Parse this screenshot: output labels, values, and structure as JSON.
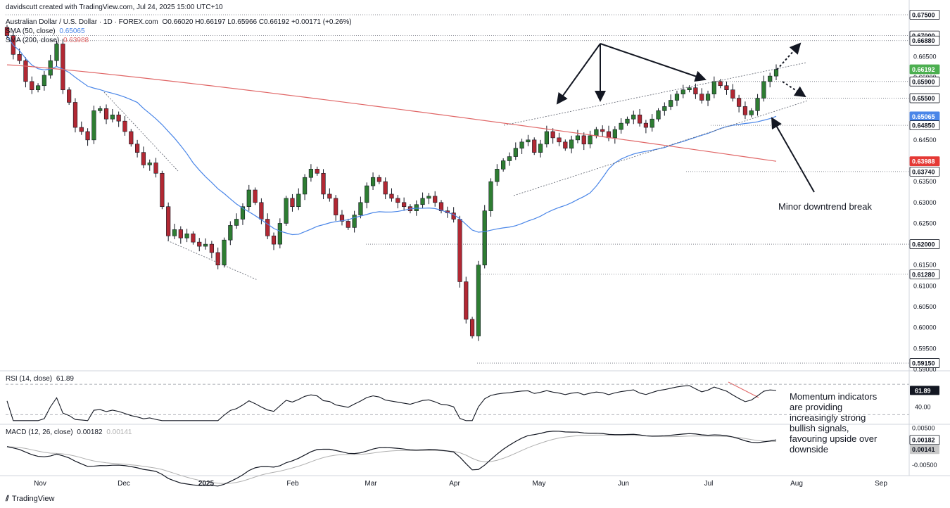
{
  "header": {
    "credit": "davidscutt created with TradingView.com, Jul 24, 2025 15:00 UTC+10",
    "symbol": "Australian Dollar / U.S. Dollar · 1D · FOREX.com",
    "ohlc": "O0.66020 H0.66197 L0.65966 C0.66192 +0.00171 (+0.26%)",
    "sma50_label": "SMA (50, close)",
    "sma50_value": "0.65065",
    "sma200_label": "SMA (200, close)",
    "sma200_value": "0.63988"
  },
  "colors": {
    "up": "#26a69a",
    "up_body": "#2e7d32",
    "down": "#b22833",
    "sma50": "#4a86e8",
    "sma200": "#e06666",
    "rsi": "#131722",
    "macd": "#131722",
    "signal": "#b0b0b0",
    "trend_red": "#e06666"
  },
  "chart_data": [
    {
      "type": "candlestick",
      "title": "Australian Dollar / U.S. Dollar · 1D · FOREX.com",
      "ylim": [
        0.5905,
        0.6755
      ],
      "y_ticks": [
        "0.66500",
        "0.66000",
        "0.65500",
        "0.64500",
        "0.63500",
        "0.63000",
        "0.62500",
        "0.61500",
        "0.61000",
        "0.60500",
        "0.60000",
        "0.59500",
        "0.59000"
      ],
      "x_ticks": [
        "Nov",
        "Dec",
        "2025",
        "Feb",
        "Mar",
        "Apr",
        "May",
        "Jun",
        "Jul",
        "Aug",
        "Sep"
      ],
      "closes_approx": [
        0.67,
        0.6655,
        0.664,
        0.659,
        0.657,
        0.658,
        0.6605,
        0.664,
        0.668,
        0.657,
        0.654,
        0.648,
        0.647,
        0.645,
        0.652,
        0.6525,
        0.65,
        0.651,
        0.6495,
        0.647,
        0.644,
        0.642,
        0.639,
        0.6395,
        0.637,
        0.629,
        0.622,
        0.6235,
        0.6215,
        0.6225,
        0.6205,
        0.6195,
        0.62,
        0.618,
        0.615,
        0.621,
        0.6245,
        0.626,
        0.629,
        0.633,
        0.63,
        0.626,
        0.622,
        0.62,
        0.625,
        0.631,
        0.629,
        0.632,
        0.636,
        0.638,
        0.637,
        0.632,
        0.631,
        0.627,
        0.6255,
        0.624,
        0.627,
        0.63,
        0.634,
        0.636,
        0.635,
        0.632,
        0.631,
        0.63,
        0.629,
        0.628,
        0.6295,
        0.631,
        0.6315,
        0.63,
        0.628,
        0.6275,
        0.626,
        0.611,
        0.602,
        0.598,
        0.615,
        0.628,
        0.635,
        0.638,
        0.64,
        0.641,
        0.643,
        0.6445,
        0.645,
        0.642,
        0.644,
        0.647,
        0.6455,
        0.6445,
        0.643,
        0.645,
        0.646,
        0.644,
        0.646,
        0.6475,
        0.647,
        0.6455,
        0.6475,
        0.649,
        0.65,
        0.651,
        0.649,
        0.648,
        0.65,
        0.652,
        0.653,
        0.6545,
        0.656,
        0.657,
        0.6575,
        0.656,
        0.6545,
        0.656,
        0.659,
        0.658,
        0.657,
        0.655,
        0.653,
        0.651,
        0.652,
        0.655,
        0.659,
        0.6603,
        0.6619
      ],
      "series": [
        {
          "name": "SMA (50, close)",
          "last": 0.65065
        },
        {
          "name": "SMA (200, close)",
          "last": 0.63988
        }
      ],
      "price_labels": [
        {
          "value": "0.67500",
          "kind": "level"
        },
        {
          "value": "0.67000",
          "kind": "level"
        },
        {
          "value": "0.66880",
          "kind": "level"
        },
        {
          "value": "0.66192",
          "kind": "last"
        },
        {
          "value": "0.65900",
          "kind": "level"
        },
        {
          "value": "0.65500",
          "kind": "level"
        },
        {
          "value": "0.65065",
          "kind": "sma50"
        },
        {
          "value": "0.64850",
          "kind": "level"
        },
        {
          "value": "0.63988",
          "kind": "sma200"
        },
        {
          "value": "0.63740",
          "kind": "level"
        },
        {
          "value": "0.62000",
          "kind": "level"
        },
        {
          "value": "0.61280",
          "kind": "level"
        },
        {
          "value": "0.59150",
          "kind": "level"
        }
      ],
      "annotations": [
        "Minor downtrend break"
      ]
    },
    {
      "type": "line",
      "title": "RSI (14, close)",
      "last": "61.89",
      "ylim": [
        20,
        85
      ],
      "y_ticks": [
        "40.00"
      ],
      "levels": [
        70,
        30
      ],
      "annotations": [
        "Momentum indicators are providing increasingly strong bullish signals, favouring upside over downside"
      ]
    },
    {
      "type": "line",
      "title": "MACD (12, 26, close)",
      "series": [
        {
          "name": "MACD",
          "last": "0.00182"
        },
        {
          "name": "Signal",
          "last": "0.00141"
        }
      ],
      "ylim": [
        -0.0075,
        0.0055
      ],
      "y_ticks": [
        "0.00500",
        "-0.00500"
      ]
    }
  ],
  "footer": {
    "brand": "TradingView"
  },
  "labels": {
    "rsi_title": "RSI (14, close)",
    "rsi_value": "61.89",
    "macd_title": "MACD (12, 26, close)",
    "macd_value": "0.00182",
    "signal_value": "0.00141",
    "downtrend_note": "Minor downtrend break",
    "momentum_note": "Momentum indicators are providing increasingly strong bullish signals, favouring upside over downside"
  }
}
